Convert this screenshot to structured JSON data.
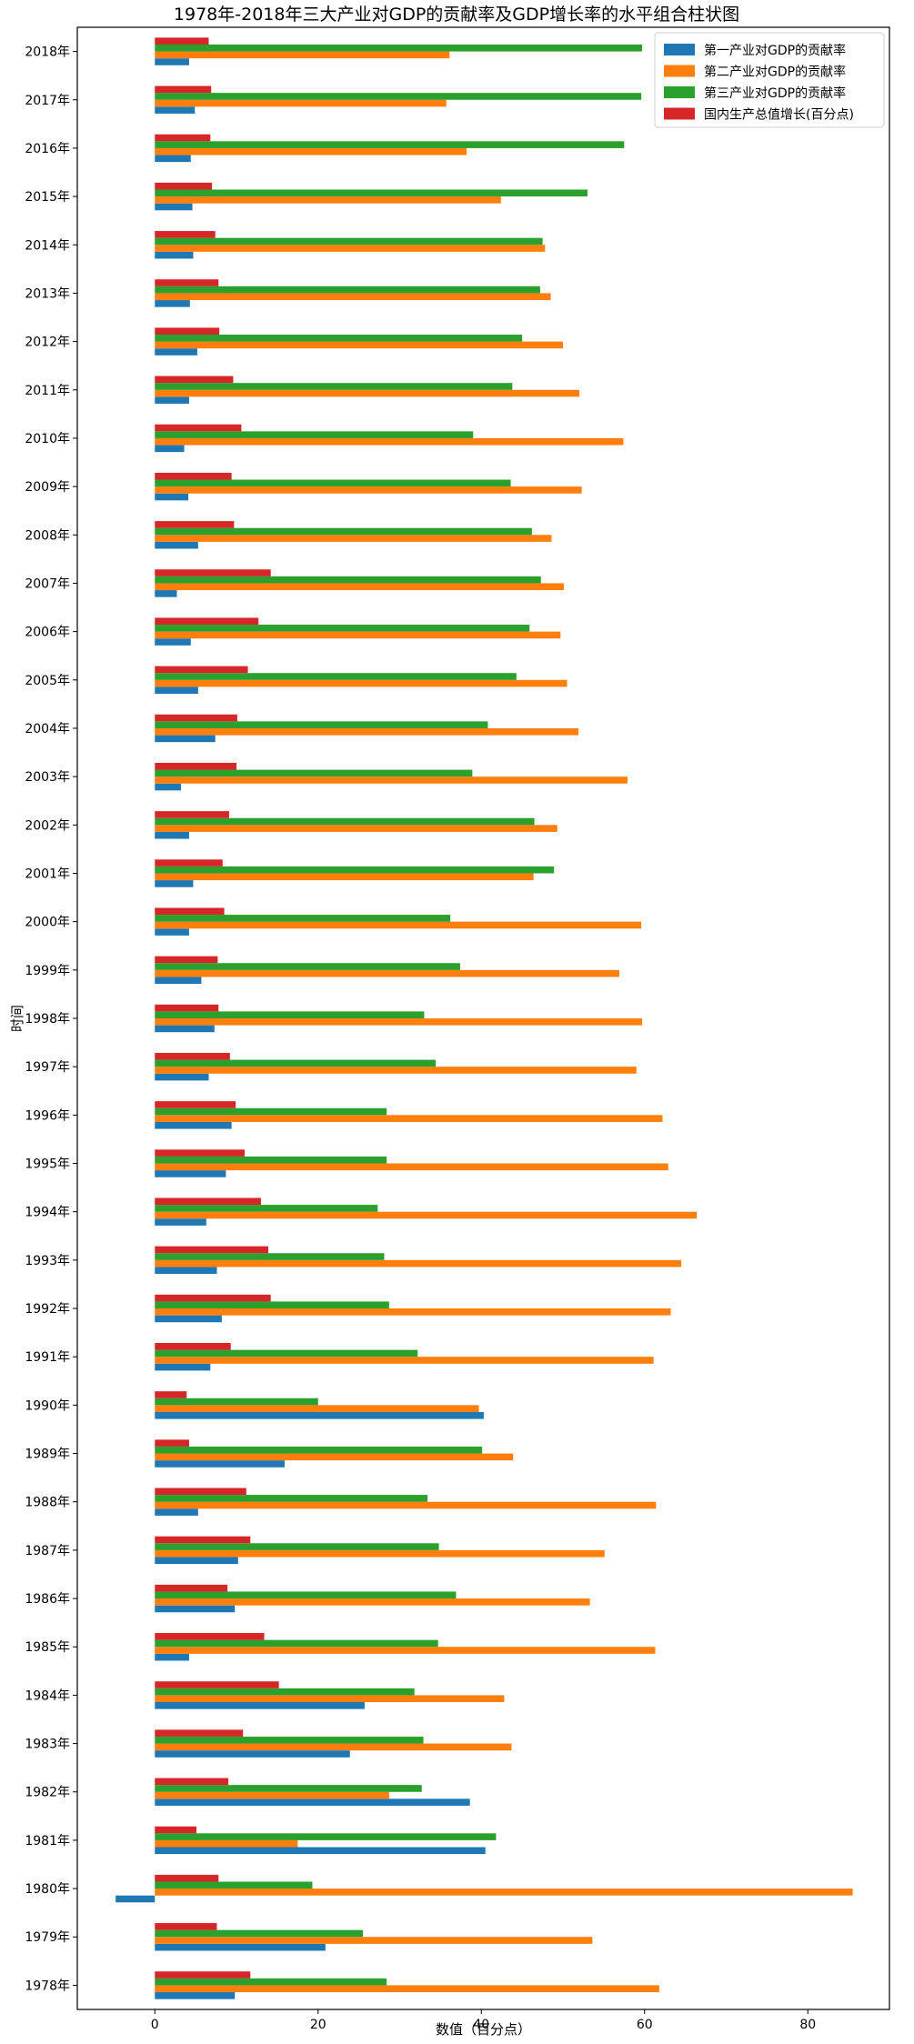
{
  "chart_data": {
    "type": "bar",
    "orientation": "horizontal",
    "title": "1978年-2018年三大产业对GDP的贡献率及GDP增长率的水平组合柱状图",
    "xlabel": "数值（百分点）",
    "ylabel": "时间",
    "xlim": [
      -9.5,
      90
    ],
    "xticks": [
      0,
      20,
      40,
      60,
      80
    ],
    "grid": false,
    "legend_position": "top-right",
    "categories": [
      "1978年",
      "1979年",
      "1980年",
      "1981年",
      "1982年",
      "1983年",
      "1984年",
      "1985年",
      "1986年",
      "1987年",
      "1988年",
      "1989年",
      "1990年",
      "1991年",
      "1992年",
      "1993年",
      "1994年",
      "1995年",
      "1996年",
      "1997年",
      "1998年",
      "1999年",
      "2000年",
      "2001年",
      "2002年",
      "2003年",
      "2004年",
      "2005年",
      "2006年",
      "2007年",
      "2008年",
      "2009年",
      "2010年",
      "2011年",
      "2012年",
      "2013年",
      "2014年",
      "2015年",
      "2016年",
      "2017年",
      "2018年"
    ],
    "series": [
      {
        "name": "第一产业对GDP的贡献率",
        "color": "#1f77b4",
        "values": [
          9.8,
          20.9,
          -4.8,
          40.5,
          38.6,
          23.9,
          25.7,
          4.2,
          9.8,
          10.2,
          5.3,
          15.9,
          40.3,
          6.8,
          8.2,
          7.6,
          6.3,
          8.7,
          9.4,
          6.6,
          7.3,
          5.7,
          4.2,
          4.7,
          4.2,
          3.2,
          7.4,
          5.3,
          4.4,
          2.7,
          5.3,
          4.1,
          3.6,
          4.2,
          5.2,
          4.3,
          4.7,
          4.6,
          4.4,
          4.9,
          4.2
        ]
      },
      {
        "name": "第二产业对GDP的贡献率",
        "color": "#ff7f0e",
        "values": [
          61.8,
          53.6,
          85.5,
          17.5,
          28.7,
          43.7,
          42.8,
          61.3,
          53.3,
          55.1,
          61.4,
          43.9,
          39.7,
          61.1,
          63.2,
          64.5,
          66.4,
          62.9,
          62.2,
          59.0,
          59.7,
          56.9,
          59.6,
          46.4,
          49.3,
          57.9,
          51.9,
          50.5,
          49.7,
          50.1,
          48.6,
          52.3,
          57.4,
          52.0,
          50.0,
          48.5,
          47.8,
          42.4,
          38.2,
          35.7,
          36.1
        ]
      },
      {
        "name": "第三产业对GDP的贡献率",
        "color": "#2ca02c",
        "values": [
          28.4,
          25.5,
          19.3,
          41.8,
          32.7,
          32.9,
          31.8,
          34.7,
          36.9,
          34.8,
          33.4,
          40.1,
          20.0,
          32.2,
          28.7,
          28.1,
          27.3,
          28.4,
          28.4,
          34.4,
          33.0,
          37.4,
          36.2,
          48.9,
          46.5,
          38.9,
          40.8,
          44.3,
          45.9,
          47.3,
          46.2,
          43.6,
          39.0,
          43.8,
          45.0,
          47.2,
          47.5,
          53.0,
          57.5,
          59.6,
          59.7
        ]
      },
      {
        "name": "国内生产总值增长(百分点)",
        "color": "#d62728",
        "values": [
          11.7,
          7.6,
          7.8,
          5.1,
          9.0,
          10.8,
          15.2,
          13.4,
          8.9,
          11.7,
          11.2,
          4.2,
          3.9,
          9.3,
          14.2,
          13.9,
          13.0,
          11.0,
          9.9,
          9.2,
          7.8,
          7.7,
          8.5,
          8.3,
          9.1,
          10.0,
          10.1,
          11.4,
          12.7,
          14.2,
          9.7,
          9.4,
          10.6,
          9.6,
          7.9,
          7.8,
          7.4,
          7.0,
          6.8,
          6.9,
          6.6
        ]
      }
    ]
  }
}
